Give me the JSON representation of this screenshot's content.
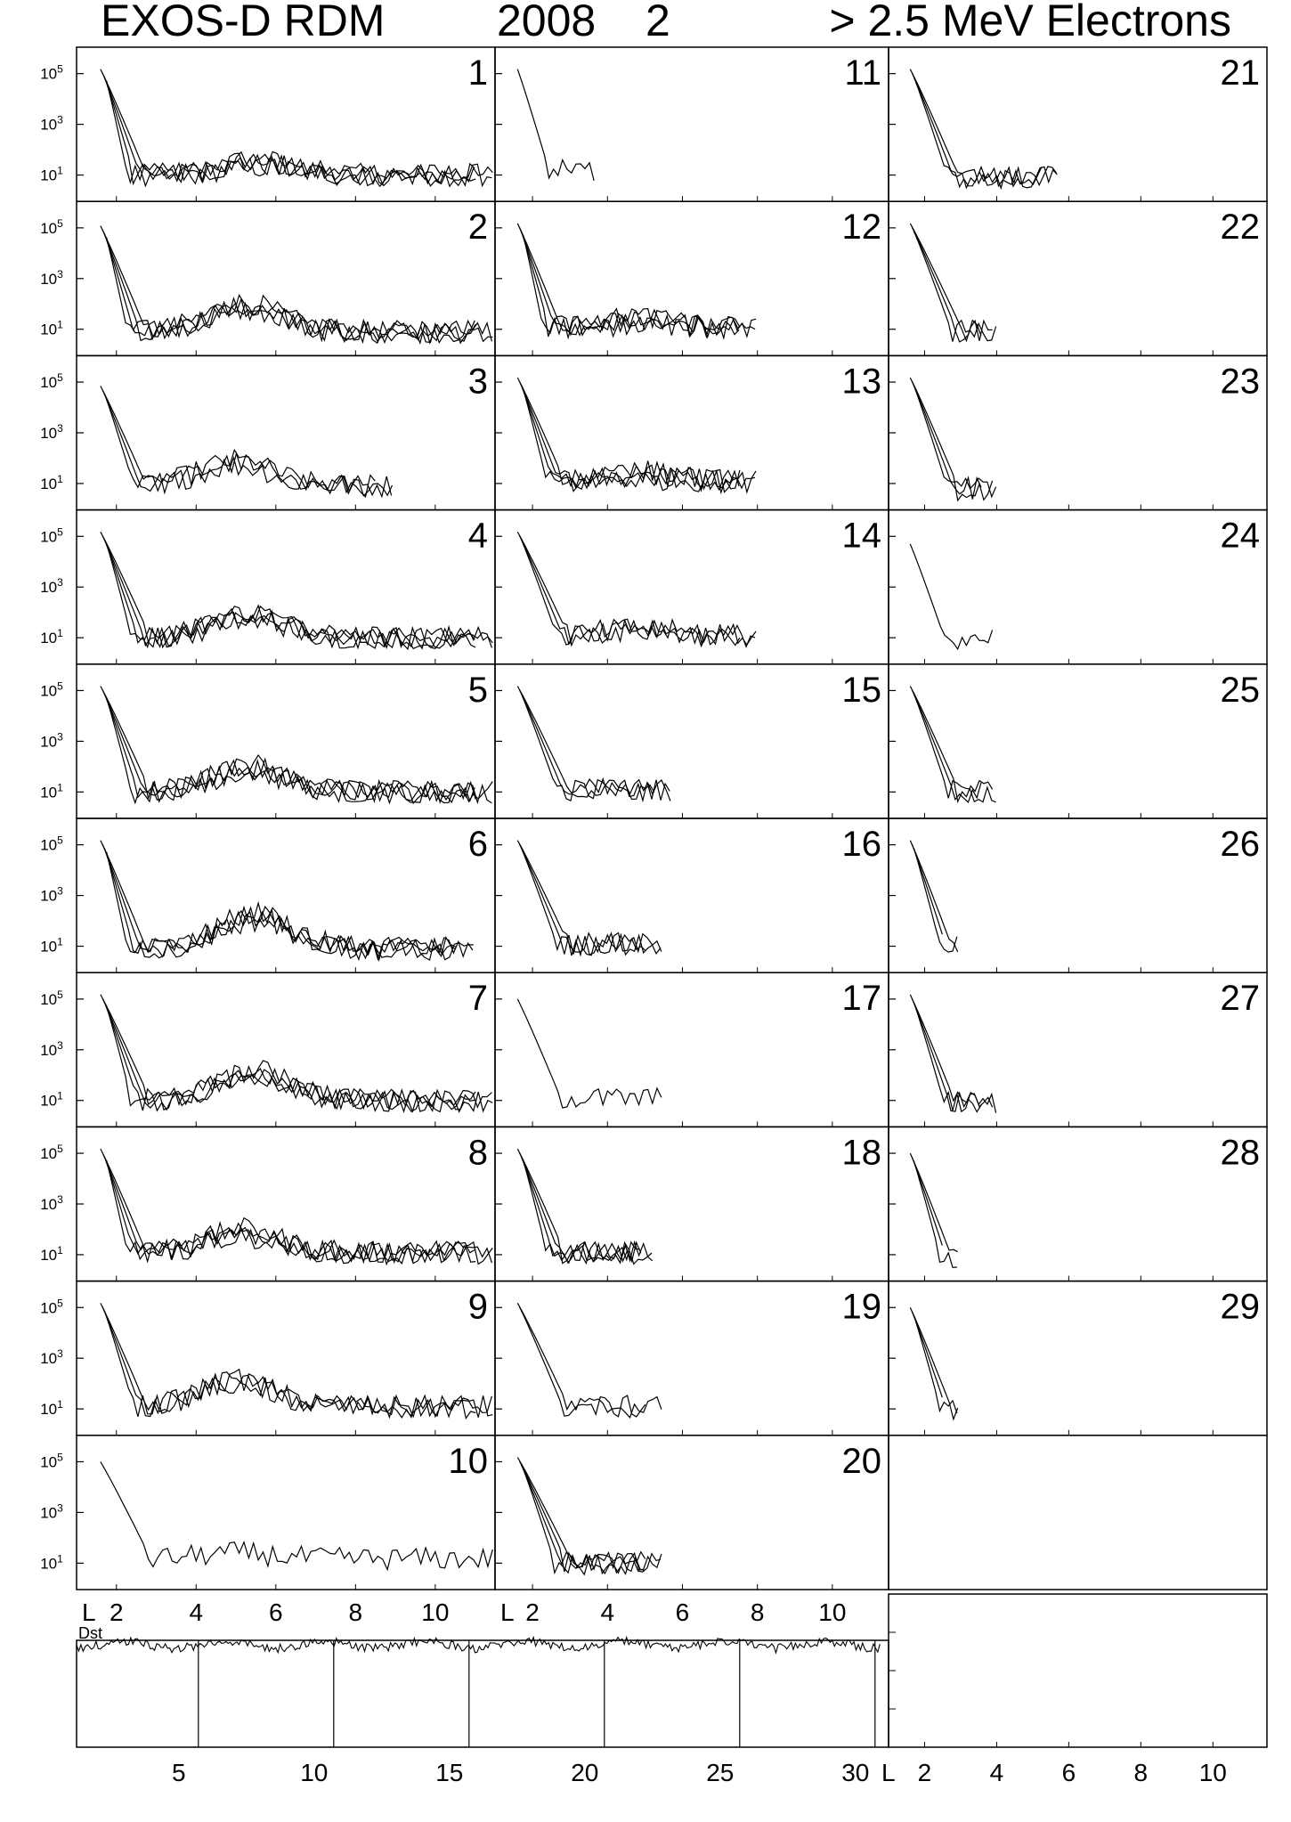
{
  "title": {
    "instrument": "EXOS-D RDM",
    "year": "2008",
    "month": "2",
    "channel": "> 2.5  MeV Electrons"
  },
  "chart_data": {
    "type": "line",
    "title": "EXOS-D RDM 2008 2 > 2.5 MeV Electrons",
    "yscale": "log",
    "xlabel": "L",
    "ylim": [
      1,
      1000000
    ],
    "xlim": [
      1,
      11.5
    ],
    "y_tick_labels": [
      {
        "base": "10",
        "exp": "5",
        "value": 100000
      },
      {
        "base": "10",
        "exp": "3",
        "value": 1000
      },
      {
        "base": "10",
        "exp": "1",
        "value": 10
      }
    ],
    "x_tick_labels": [
      "2",
      "4",
      "6",
      "8",
      "10"
    ],
    "x_tick_values": [
      2,
      4,
      6,
      8,
      10
    ],
    "grid": false,
    "days": [
      {
        "day": "1",
        "orbits": 4,
        "inner_peak": 150000,
        "decay_L": 2.6,
        "background": 10,
        "belt": true,
        "belt_peak": 40,
        "belt_L": 5.5,
        "max_L": 11.5
      },
      {
        "day": "2",
        "orbits": 4,
        "inner_peak": 120000,
        "decay_L": 2.6,
        "background": 8,
        "belt": true,
        "belt_peak": 110,
        "belt_L": 5.2,
        "max_L": 11.5
      },
      {
        "day": "3",
        "orbits": 3,
        "inner_peak": 70000,
        "decay_L": 2.6,
        "background": 8,
        "belt": true,
        "belt_peak": 80,
        "belt_L": 5.0,
        "max_L": 9.0
      },
      {
        "day": "4",
        "orbits": 4,
        "inner_peak": 150000,
        "decay_L": 2.7,
        "background": 10,
        "belt": true,
        "belt_peak": 100,
        "belt_L": 5.3,
        "max_L": 11.5
      },
      {
        "day": "5",
        "orbits": 4,
        "inner_peak": 150000,
        "decay_L": 2.7,
        "background": 10,
        "belt": true,
        "belt_peak": 120,
        "belt_L": 5.3,
        "max_L": 11.5
      },
      {
        "day": "6",
        "orbits": 4,
        "inner_peak": 150000,
        "decay_L": 2.6,
        "background": 8,
        "belt": true,
        "belt_peak": 200,
        "belt_L": 5.5,
        "max_L": 11.0
      },
      {
        "day": "7",
        "orbits": 4,
        "inner_peak": 150000,
        "decay_L": 2.7,
        "background": 10,
        "belt": true,
        "belt_peak": 150,
        "belt_L": 5.5,
        "max_L": 11.5
      },
      {
        "day": "8",
        "orbits": 4,
        "inner_peak": 150000,
        "decay_L": 2.6,
        "background": 12,
        "belt": true,
        "belt_peak": 100,
        "belt_L": 5.2,
        "max_L": 11.5
      },
      {
        "day": "9",
        "orbits": 3,
        "inner_peak": 150000,
        "decay_L": 2.6,
        "background": 12,
        "belt": true,
        "belt_peak": 150,
        "belt_L": 5.0,
        "max_L": 11.5
      },
      {
        "day": "10",
        "orbits": 1,
        "inner_peak": 100000,
        "decay_L": 2.7,
        "background": 15,
        "belt": true,
        "belt_peak": 25,
        "belt_L": 5.0,
        "max_L": 11.5
      },
      {
        "day": "11",
        "orbits": 1,
        "inner_peak": 150000,
        "decay_L": 2.3,
        "background": 15,
        "belt": false,
        "max_L": 3.7
      },
      {
        "day": "12",
        "orbits": 4,
        "inner_peak": 150000,
        "decay_L": 2.6,
        "background": 12,
        "belt": true,
        "belt_peak": 30,
        "belt_L": 4.8,
        "max_L": 8.0
      },
      {
        "day": "13",
        "orbits": 4,
        "inner_peak": 150000,
        "decay_L": 2.7,
        "background": 12,
        "belt": true,
        "belt_peak": 30,
        "belt_L": 5.0,
        "max_L": 8.0
      },
      {
        "day": "14",
        "orbits": 3,
        "inner_peak": 150000,
        "decay_L": 2.8,
        "background": 12,
        "belt": true,
        "belt_peak": 30,
        "belt_L": 4.8,
        "max_L": 8.0
      },
      {
        "day": "15",
        "orbits": 3,
        "inner_peak": 150000,
        "decay_L": 2.8,
        "background": 12,
        "belt": false,
        "max_L": 5.7
      },
      {
        "day": "16",
        "orbits": 3,
        "inner_peak": 150000,
        "decay_L": 2.8,
        "background": 12,
        "belt": false,
        "max_L": 5.5
      },
      {
        "day": "17",
        "orbits": 1,
        "inner_peak": 100000,
        "decay_L": 2.6,
        "background": 12,
        "belt": false,
        "max_L": 5.5
      },
      {
        "day": "18",
        "orbits": 4,
        "inner_peak": 150000,
        "decay_L": 2.7,
        "background": 12,
        "belt": false,
        "max_L": 5.3
      },
      {
        "day": "19",
        "orbits": 2,
        "inner_peak": 150000,
        "decay_L": 2.8,
        "background": 12,
        "belt": false,
        "max_L": 5.5
      },
      {
        "day": "20",
        "orbits": 4,
        "inner_peak": 150000,
        "decay_L": 2.9,
        "background": 10,
        "belt": false,
        "max_L": 5.5
      },
      {
        "day": "21",
        "orbits": 3,
        "inner_peak": 150000,
        "decay_L": 2.8,
        "background": 8,
        "belt": false,
        "max_L": 5.7
      },
      {
        "day": "22",
        "orbits": 3,
        "inner_peak": 150000,
        "decay_L": 2.9,
        "background": 8,
        "belt": false,
        "max_L": 4.0
      },
      {
        "day": "23",
        "orbits": 3,
        "inner_peak": 150000,
        "decay_L": 2.8,
        "background": 6,
        "belt": false,
        "max_L": 4.0
      },
      {
        "day": "24",
        "orbits": 1,
        "inner_peak": 50000,
        "decay_L": 2.4,
        "background": 10,
        "belt": false,
        "max_L": 3.9
      },
      {
        "day": "25",
        "orbits": 3,
        "inner_peak": 150000,
        "decay_L": 2.8,
        "background": 10,
        "belt": false,
        "max_L": 4.0
      },
      {
        "day": "26",
        "orbits": 3,
        "inner_peak": 150000,
        "decay_L": 2.6,
        "background": 10,
        "belt": false,
        "max_L": 3.0
      },
      {
        "day": "27",
        "orbits": 3,
        "inner_peak": 150000,
        "decay_L": 2.7,
        "background": 8,
        "belt": false,
        "max_L": 4.0
      },
      {
        "day": "28",
        "orbits": 3,
        "inner_peak": 100000,
        "decay_L": 2.6,
        "background": 8,
        "belt": false,
        "max_L": 3.0
      },
      {
        "day": "29",
        "orbits": 3,
        "inner_peak": 100000,
        "decay_L": 2.6,
        "background": 10,
        "belt": false,
        "max_L": 3.0
      }
    ],
    "dst": {
      "label": "Dst",
      "x_tick_labels": [
        "5",
        "10",
        "15",
        "20",
        "25",
        "30"
      ],
      "x_tick_values": [
        5,
        10,
        15,
        20,
        25,
        30
      ],
      "xlim": [
        1,
        31
      ]
    }
  }
}
